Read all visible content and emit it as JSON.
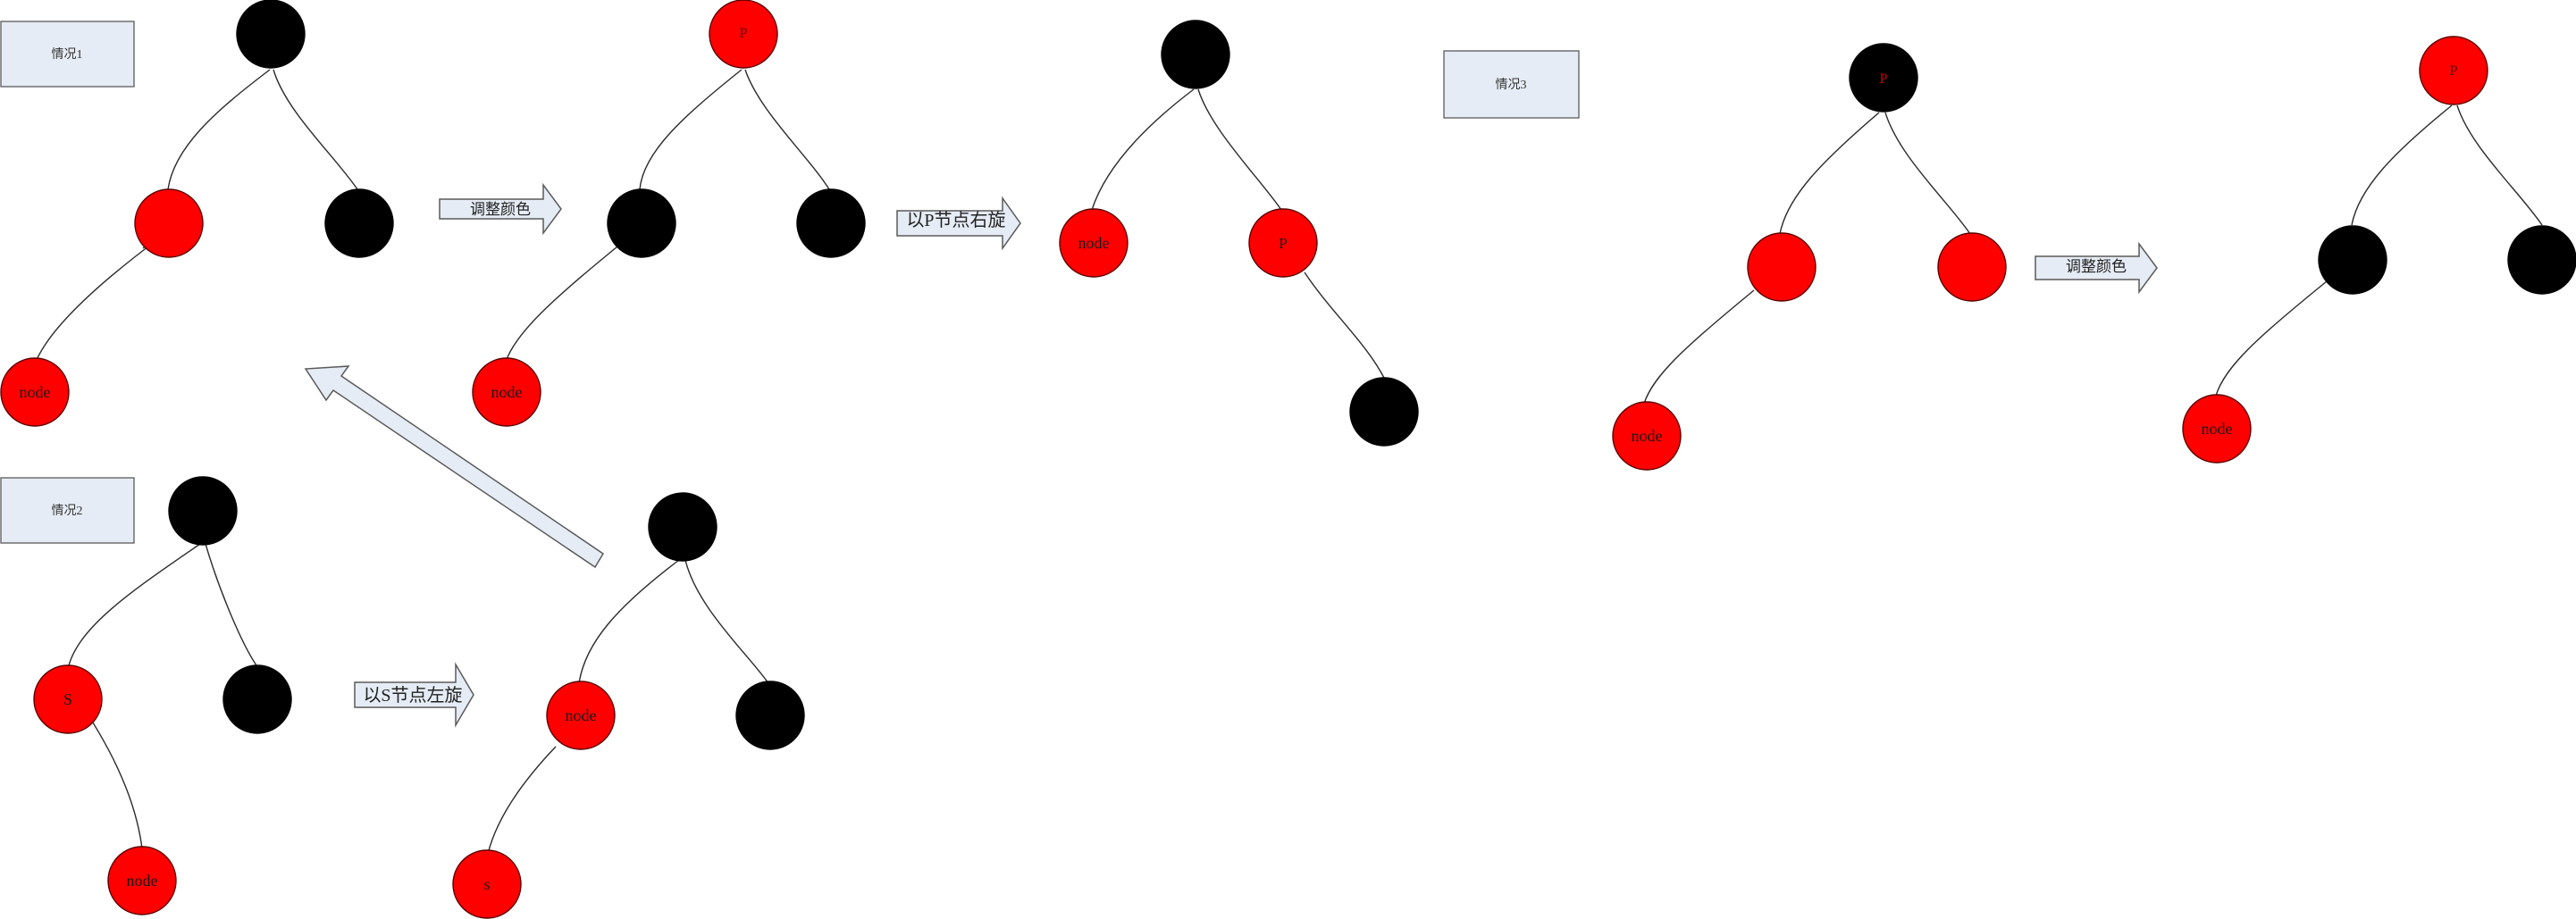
{
  "labels": {
    "case1": "情况1",
    "case2": "情况2",
    "case3": "情况3"
  },
  "arrows": {
    "adjust_color_1": "调整颜色",
    "rotate_right_p": "以P节点右旋",
    "rotate_left_s": "以S节点左旋",
    "adjust_color_3": "调整颜色"
  },
  "nodes": {
    "node": "node",
    "p": "P",
    "s": "S",
    "s_lower": "s"
  },
  "colors": {
    "red": "#ff0000",
    "black": "#000000",
    "box_fill": "#e6ecf5"
  }
}
